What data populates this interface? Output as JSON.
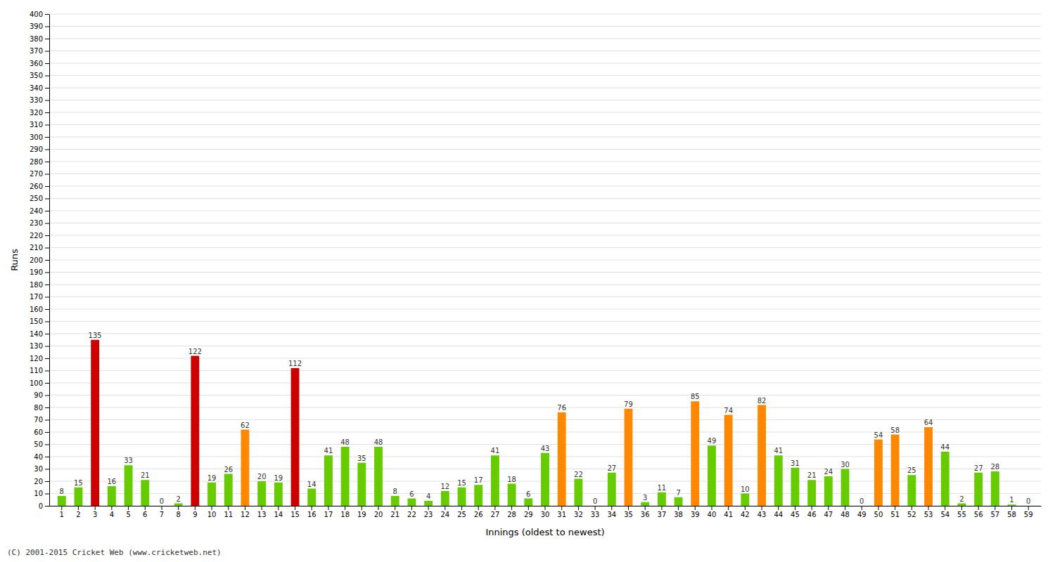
{
  "chart_data": {
    "type": "bar",
    "xlabel": "Innings (oldest to newest)",
    "ylabel": "Runs",
    "footnote": "(C) 2001-2015 Cricket Web (www.cricketweb.net)",
    "categories": [
      "1",
      "2",
      "3",
      "4",
      "5",
      "6",
      "7",
      "8",
      "9",
      "10",
      "11",
      "12",
      "13",
      "14",
      "15",
      "16",
      "17",
      "18",
      "19",
      "20",
      "21",
      "22",
      "23",
      "24",
      "25",
      "26",
      "27",
      "28",
      "29",
      "30",
      "31",
      "32",
      "33",
      "34",
      "35",
      "36",
      "37",
      "38",
      "39",
      "40",
      "41",
      "42",
      "43",
      "44",
      "45",
      "46",
      "47",
      "48",
      "49",
      "50",
      "51",
      "52",
      "53",
      "54",
      "55",
      "56",
      "57",
      "58",
      "59"
    ],
    "values": [
      8,
      15,
      135,
      16,
      33,
      21,
      0,
      2,
      122,
      19,
      26,
      62,
      20,
      19,
      112,
      14,
      41,
      48,
      35,
      48,
      8,
      6,
      4,
      12,
      15,
      17,
      41,
      18,
      6,
      43,
      76,
      22,
      0,
      27,
      79,
      3,
      11,
      7,
      85,
      49,
      74,
      10,
      82,
      41,
      31,
      21,
      24,
      30,
      0,
      54,
      58,
      25,
      64,
      44,
      2,
      27,
      28,
      1,
      0
    ],
    "colors": [
      "#66cc00",
      "#66cc00",
      "#cc0000",
      "#66cc00",
      "#66cc00",
      "#66cc00",
      "#66cc00",
      "#66cc00",
      "#cc0000",
      "#66cc00",
      "#66cc00",
      "#ff8800",
      "#66cc00",
      "#66cc00",
      "#cc0000",
      "#66cc00",
      "#66cc00",
      "#66cc00",
      "#66cc00",
      "#66cc00",
      "#66cc00",
      "#66cc00",
      "#66cc00",
      "#66cc00",
      "#66cc00",
      "#66cc00",
      "#66cc00",
      "#66cc00",
      "#66cc00",
      "#66cc00",
      "#ff8800",
      "#66cc00",
      "#66cc00",
      "#66cc00",
      "#ff8800",
      "#66cc00",
      "#66cc00",
      "#66cc00",
      "#ff8800",
      "#66cc00",
      "#ff8800",
      "#66cc00",
      "#ff8800",
      "#66cc00",
      "#66cc00",
      "#66cc00",
      "#66cc00",
      "#66cc00",
      "#66cc00",
      "#ff8800",
      "#ff8800",
      "#66cc00",
      "#ff8800",
      "#66cc00",
      "#66cc00",
      "#66cc00",
      "#66cc00",
      "#66cc00",
      "#66cc00"
    ],
    "ylim": [
      0,
      400
    ],
    "yticks": [
      0,
      10,
      20,
      30,
      40,
      50,
      60,
      70,
      80,
      90,
      100,
      110,
      120,
      130,
      140,
      150,
      160,
      170,
      180,
      190,
      200,
      210,
      220,
      230,
      240,
      250,
      260,
      270,
      280,
      290,
      300,
      310,
      320,
      330,
      340,
      350,
      360,
      370,
      380,
      390,
      400
    ],
    "grid": true,
    "data_labels": true
  }
}
